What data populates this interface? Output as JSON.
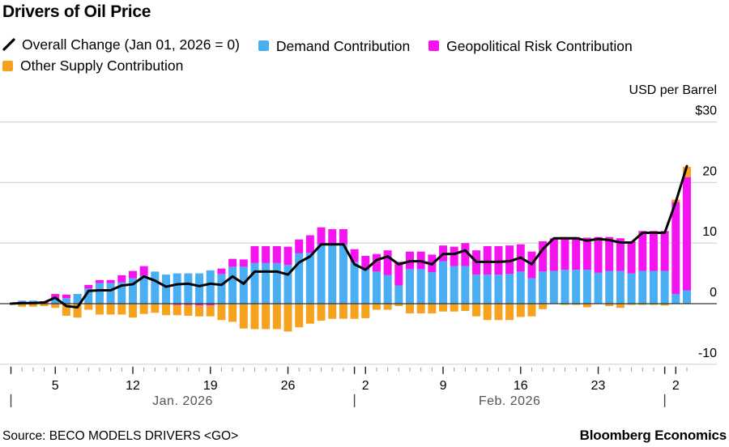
{
  "title": "Drivers of Oil Price",
  "unit_label": "USD per Barrel",
  "source": "Source: BECO MODELS DRIVERS <GO>",
  "brand": "Bloomberg Economics",
  "colors": {
    "overall": "#000000",
    "demand": "#4aaef2",
    "geopolitical": "#f514f0",
    "other_supply": "#f7a21e",
    "grid": "#d4d4d4",
    "zero": "#333333"
  },
  "legend": [
    {
      "label": "Overall Change (Jan 01, 2026 = 0)",
      "icon": "line-slash-icon",
      "key": "overall"
    },
    {
      "label": "Demand Contribution",
      "icon": "square-icon",
      "key": "demand"
    },
    {
      "label": "Geopolitical Risk Contribution",
      "icon": "square-icon",
      "key": "geopolitical"
    },
    {
      "label": "Other Supply Contribution",
      "icon": "square-icon",
      "key": "other_supply"
    }
  ],
  "chart_data": {
    "type": "bar",
    "stacked": true,
    "title": "Drivers of Oil Price",
    "ylabel": "USD per Barrel",
    "ylim": [
      -10,
      30
    ],
    "y_ticks": [
      {
        "value": 30,
        "label": "$30"
      },
      {
        "value": 20,
        "label": "20"
      },
      {
        "value": 10,
        "label": "10"
      },
      {
        "value": 0,
        "label": "0"
      },
      {
        "value": -10,
        "label": "-10"
      }
    ],
    "x_ticks": [
      {
        "date": "2026-01-05",
        "label": "5"
      },
      {
        "date": "2026-01-12",
        "label": "12"
      },
      {
        "date": "2026-01-19",
        "label": "19"
      },
      {
        "date": "2026-01-26",
        "label": "26"
      },
      {
        "date": "2026-02-02",
        "label": "2"
      },
      {
        "date": "2026-02-09",
        "label": "9"
      },
      {
        "date": "2026-02-16",
        "label": "16"
      },
      {
        "date": "2026-02-23",
        "label": "23"
      },
      {
        "date": "2026-03-02",
        "label": "2"
      }
    ],
    "months": [
      {
        "start": "2026-01-01",
        "label": "Jan. 2026"
      },
      {
        "start": "2026-02-01",
        "label": "Feb. 2026"
      },
      {
        "start": "2026-03-01",
        "label": ""
      }
    ],
    "grid": true,
    "legend_position": "top",
    "x": [
      "2026-01-01",
      "2026-01-02",
      "2026-01-03",
      "2026-01-04",
      "2026-01-05",
      "2026-01-06",
      "2026-01-07",
      "2026-01-08",
      "2026-01-09",
      "2026-01-10",
      "2026-01-11",
      "2026-01-12",
      "2026-01-13",
      "2026-01-14",
      "2026-01-15",
      "2026-01-16",
      "2026-01-17",
      "2026-01-18",
      "2026-01-19",
      "2026-01-20",
      "2026-01-21",
      "2026-01-22",
      "2026-01-23",
      "2026-01-24",
      "2026-01-25",
      "2026-01-26",
      "2026-01-27",
      "2026-01-28",
      "2026-01-29",
      "2026-01-30",
      "2026-01-31",
      "2026-02-01",
      "2026-02-02",
      "2026-02-03",
      "2026-02-04",
      "2026-02-05",
      "2026-02-06",
      "2026-02-07",
      "2026-02-08",
      "2026-02-09",
      "2026-02-10",
      "2026-02-11",
      "2026-02-12",
      "2026-02-13",
      "2026-02-14",
      "2026-02-15",
      "2026-02-16",
      "2026-02-17",
      "2026-02-18",
      "2026-02-19",
      "2026-02-20",
      "2026-02-21",
      "2026-02-22",
      "2026-02-23",
      "2026-02-24",
      "2026-02-25",
      "2026-02-26",
      "2026-02-27",
      "2026-02-28",
      "2026-03-01",
      "2026-03-02",
      "2026-03-03"
    ],
    "series": [
      {
        "name": "Demand Contribution",
        "key": "demand",
        "kind": "bar",
        "values": [
          null,
          0.5,
          0.5,
          0,
          0.8,
          0.9,
          1.6,
          2.5,
          3.4,
          3.4,
          3.5,
          4.2,
          4.6,
          5.3,
          4.8,
          5.0,
          5.0,
          5.0,
          5.5,
          4.9,
          6.1,
          6.1,
          6.7,
          6.7,
          6.7,
          6.4,
          8.3,
          8.4,
          9.8,
          9.8,
          9.8,
          6.9,
          5.6,
          5.3,
          4.7,
          3.0,
          5.7,
          5.7,
          5.2,
          7.0,
          6.2,
          6.2,
          4.8,
          4.8,
          4.8,
          4.9,
          5.3,
          4.2,
          5.3,
          5.4,
          5.6,
          5.6,
          5.6,
          5.1,
          5.4,
          5.4,
          5.0,
          5.4,
          5.4,
          5.4,
          1.6,
          2.2
        ]
      },
      {
        "name": "Geopolitical Risk Contribution",
        "key": "geopolitical",
        "kind": "bar",
        "values": [
          null,
          0,
          0,
          0.4,
          0.8,
          0.6,
          0,
          0.6,
          0.5,
          0.5,
          1.2,
          1.2,
          1.6,
          0,
          0,
          -0.2,
          -0.2,
          -0.3,
          -0.3,
          0.9,
          1.3,
          1.2,
          2.8,
          2.8,
          2.8,
          3.0,
          2.3,
          2.9,
          2.8,
          2.5,
          2.5,
          2.1,
          2.3,
          2.9,
          4.1,
          3.9,
          2.9,
          2.9,
          2.9,
          2.6,
          3.2,
          3.8,
          4.0,
          4.7,
          4.7,
          4.7,
          4.5,
          4.4,
          5.0,
          5.4,
          5.4,
          5.4,
          5.3,
          5.9,
          5.6,
          5.4,
          5.3,
          6.6,
          6.6,
          6.6,
          15.2,
          18.7
        ]
      },
      {
        "name": "Other Supply Contribution",
        "key": "other_supply",
        "kind": "bar",
        "values": [
          null,
          -0.5,
          -0.5,
          -0.4,
          -0.7,
          -2.0,
          -2.3,
          -1.0,
          -1.8,
          -1.8,
          -1.8,
          -2.3,
          -1.7,
          -1.5,
          -1.9,
          -1.7,
          -1.8,
          -1.8,
          -1.8,
          -2.7,
          -3.0,
          -4.1,
          -4.2,
          -4.2,
          -4.2,
          -4.6,
          -3.9,
          -3.3,
          -2.8,
          -2.5,
          -2.5,
          -2.5,
          -2.4,
          -1.0,
          -1.0,
          -0.4,
          -1.6,
          -1.6,
          -1.6,
          -1.3,
          -1.3,
          -1.2,
          -2.1,
          -2.7,
          -2.7,
          -2.7,
          -2.2,
          -2.1,
          -0.9,
          0,
          -0.2,
          -0.2,
          -0.6,
          0,
          -0.4,
          -0.7,
          -0.2,
          -0.2,
          -0.2,
          -0.3,
          0.4,
          1.7
        ]
      },
      {
        "name": "Overall Change (Jan 01, 2026 = 0)",
        "key": "overall",
        "kind": "line",
        "values": [
          0,
          0.1,
          0.1,
          0.2,
          1.0,
          -0.4,
          -0.6,
          2.1,
          2.2,
          2.2,
          3.0,
          3.2,
          4.5,
          3.8,
          2.8,
          3.2,
          3.3,
          2.9,
          3.3,
          3.1,
          4.5,
          3.3,
          5.3,
          5.3,
          5.3,
          4.8,
          6.8,
          7.8,
          9.8,
          9.8,
          9.8,
          6.5,
          5.6,
          7.2,
          7.8,
          6.5,
          7.0,
          7.0,
          6.5,
          8.2,
          8.2,
          8.8,
          6.9,
          6.9,
          6.9,
          7.0,
          7.6,
          6.5,
          9.0,
          10.8,
          10.8,
          10.8,
          10.4,
          10.7,
          10.5,
          10.1,
          10.1,
          11.7,
          11.7,
          11.7,
          16.8,
          22.7
        ]
      }
    ]
  }
}
